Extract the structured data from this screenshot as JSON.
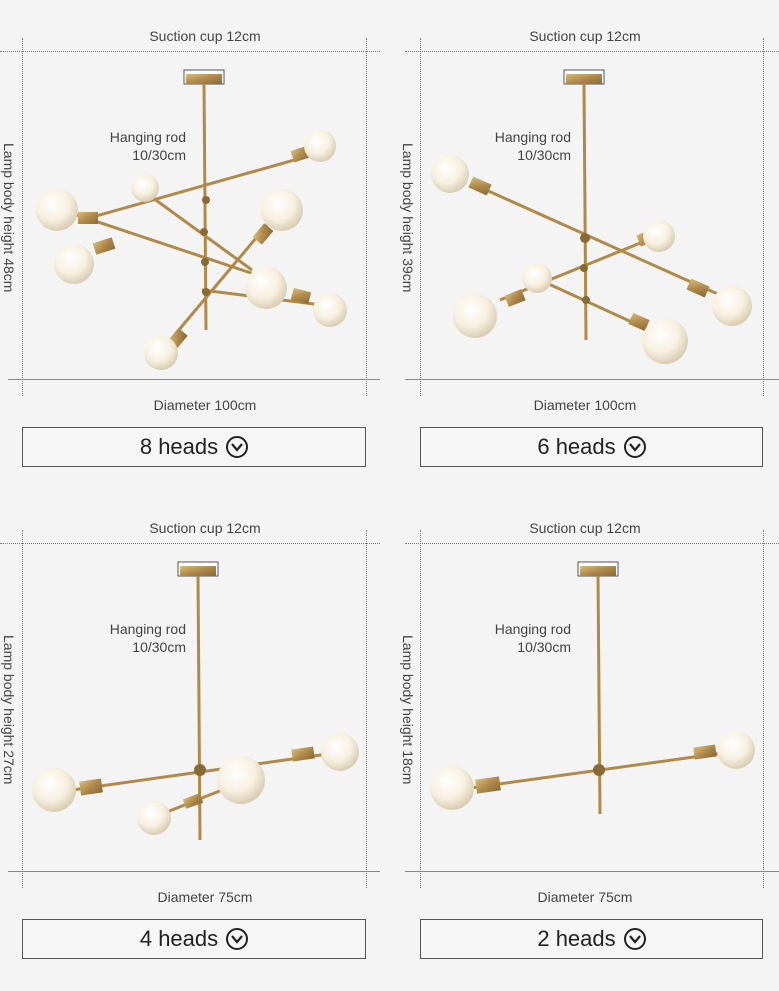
{
  "panels": [
    {
      "cup": "Suction cup 12cm",
      "rod_line1": "Hanging rod",
      "rod_line2": "10/30cm",
      "height": "Lamp body height 48cm",
      "diameter": "Diameter 100cm",
      "heads": "8 heads"
    },
    {
      "cup": "Suction cup 12cm",
      "rod_line1": "Hanging rod",
      "rod_line2": "10/30cm",
      "height": "Lamp body height 39cm",
      "diameter": "Diameter 100cm",
      "heads": "6 heads"
    },
    {
      "cup": "Suction cup 12cm",
      "rod_line1": "Hanging rod",
      "rod_line2": "10/30cm",
      "height": "Lamp body height 27cm",
      "diameter": "Diameter 75cm",
      "heads": "4 heads"
    },
    {
      "cup": "Suction cup 12cm",
      "rod_line1": "Hanging rod",
      "rod_line2": "10/30cm",
      "height": "Lamp body height 18cm",
      "diameter": "Diameter 75cm",
      "heads": "2 heads"
    }
  ],
  "colors": {
    "brass": "#b8975a",
    "bulb": "#fbf6ea"
  },
  "icons": {
    "dropdown": "chevron-down-circle-icon"
  }
}
